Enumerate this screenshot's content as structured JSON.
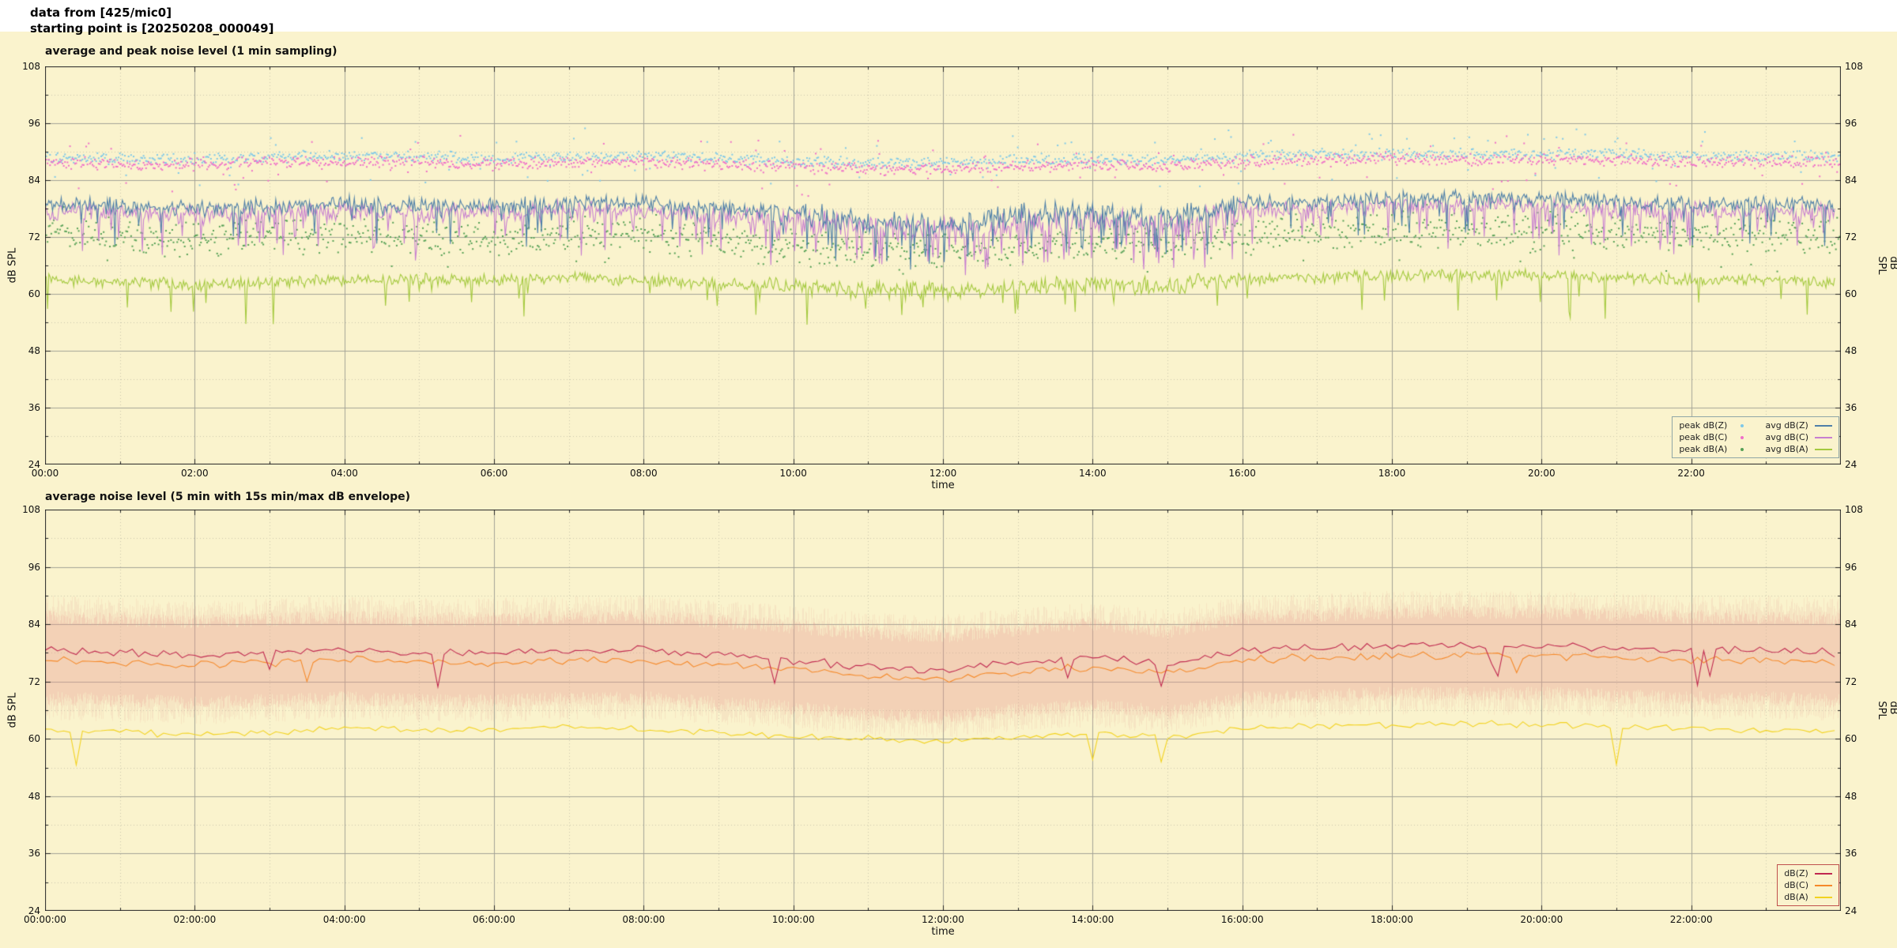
{
  "header": {
    "line1": "data from [425/mic0]",
    "line2": "starting point is [20250208_000049]"
  },
  "colors": {
    "background": "#faf3cd",
    "grid_major": "#a3a396",
    "grid_minor": "#c9c7ae",
    "axis": "#222222"
  },
  "chart_data": [
    {
      "type": "line",
      "title": "average and peak noise level (1 min sampling)",
      "xlabel": "time",
      "ylabel": "dB SPL",
      "ylim": [
        24,
        108
      ],
      "yticks": [
        24,
        36,
        48,
        60,
        72,
        84,
        96,
        108
      ],
      "xtick_labels": [
        "00:00",
        "02:00",
        "04:00",
        "06:00",
        "08:00",
        "10:00",
        "12:00",
        "14:00",
        "16:00",
        "18:00",
        "20:00",
        "22:00"
      ],
      "x_range_hours": [
        0,
        24
      ],
      "grid": true,
      "legend_position": "bottom-right",
      "legend_border": "#8fa6a6",
      "sample_minutes": 1,
      "legend_layout": [
        [
          "peak dB(Z)",
          "avg dB(Z)"
        ],
        [
          "peak dB(C)",
          "avg dB(C)"
        ],
        [
          "peak dB(A)",
          "avg dB(A)"
        ]
      ],
      "series": [
        {
          "name": "peak dB(Z)",
          "style": "scatter",
          "color": "#7ec8e8",
          "noise": 1.4,
          "hourly": [
            89,
            88.5,
            88.5,
            89,
            89,
            89,
            88.5,
            89,
            89,
            88.5,
            88,
            87.5,
            87.5,
            88,
            88.5,
            88,
            89,
            89.5,
            89.5,
            89.5,
            89.5,
            89.5,
            89,
            89,
            89
          ]
        },
        {
          "name": "peak dB(C)",
          "style": "scatter",
          "color": "#ef6fc8",
          "noise": 1.5,
          "hourly": [
            87.8,
            87.3,
            87.3,
            87.8,
            87.8,
            87.8,
            87.3,
            87.8,
            87.8,
            87.3,
            86.8,
            86.3,
            86.3,
            86.8,
            87.3,
            86.8,
            87.8,
            88.3,
            88.3,
            88.3,
            88.3,
            88.3,
            87.8,
            87.8,
            87.8
          ]
        },
        {
          "name": "peak dB(A)",
          "style": "scatter",
          "color": "#55a055",
          "noise": 4.2,
          "hourly": [
            73,
            72,
            71.5,
            72,
            72.5,
            72,
            72,
            72.5,
            72,
            71,
            70,
            69.5,
            69,
            70,
            71,
            70.5,
            72,
            73,
            73.5,
            73.5,
            73,
            73,
            72.5,
            72,
            72
          ]
        },
        {
          "name": "avg dB(C)",
          "style": "line",
          "color": "#c77fd0",
          "noise": 2.3,
          "dip": 0.09,
          "hourly": [
            77.5,
            77,
            76.5,
            77,
            77.5,
            77,
            77,
            77.5,
            77.5,
            76.5,
            75.5,
            74,
            73,
            75,
            76,
            74,
            77.5,
            78,
            78.5,
            78.5,
            78.5,
            78,
            77.5,
            77.5,
            77
          ]
        },
        {
          "name": "avg dB(Z)",
          "style": "line",
          "color": "#4e7fa8",
          "noise": 2.0,
          "dip": 0.06,
          "hourly": [
            79,
            78.5,
            78,
            78.5,
            79,
            78.5,
            78.5,
            79,
            79,
            78,
            77,
            75.5,
            74.5,
            76.5,
            77.5,
            75.5,
            79,
            79.5,
            80,
            80,
            80,
            79.5,
            79,
            79,
            78.5
          ]
        },
        {
          "name": "avg dB(A)",
          "style": "line",
          "color": "#a4c93f",
          "noise": 1.5,
          "dip": 0.03,
          "hourly": [
            63,
            62.5,
            62,
            62.5,
            63,
            63,
            63,
            63.5,
            63,
            62,
            61.5,
            61,
            60.5,
            61.5,
            62,
            61.5,
            63,
            63.5,
            64,
            64,
            64,
            63.5,
            63,
            63,
            62.5
          ]
        }
      ]
    },
    {
      "type": "line",
      "title": "average noise level (5 min with 15s min/max dB envelope)",
      "xlabel": "time",
      "ylabel": "dB SPL",
      "ylim": [
        24,
        108
      ],
      "yticks": [
        24,
        36,
        48,
        60,
        72,
        84,
        96,
        108
      ],
      "xtick_labels": [
        "00:00:00",
        "02:00:00",
        "04:00:00",
        "06:00:00",
        "08:00:00",
        "10:00:00",
        "12:00:00",
        "14:00:00",
        "16:00:00",
        "18:00:00",
        "20:00:00",
        "22:00:00"
      ],
      "x_range_hours": [
        0,
        24
      ],
      "grid": true,
      "legend_position": "bottom-right",
      "legend_border": "#c0504d",
      "sample_minutes": 5,
      "legend_layout": [
        [
          "dB(Z)"
        ],
        [
          "dB(C)"
        ],
        [
          "dB(A)"
        ]
      ],
      "envelope": {
        "name": "15s min/max envelope",
        "color": "#e89a90",
        "top_hourly": [
          85.5,
          85,
          84.5,
          85,
          85.5,
          85,
          85,
          85.5,
          85.5,
          84.5,
          83.5,
          82,
          81.5,
          83,
          84,
          82.5,
          85.5,
          86,
          86.5,
          86.5,
          86.5,
          86,
          85.5,
          85.5,
          85
        ],
        "bottom_hourly": [
          68.5,
          68,
          67.5,
          68,
          68.5,
          68,
          68,
          68.5,
          68.5,
          67.5,
          66.5,
          65,
          64.5,
          66,
          67,
          65.5,
          68.5,
          69,
          69.5,
          69.5,
          69.5,
          69,
          68.5,
          68.5,
          68
        ],
        "noise": 3.2
      },
      "series": [
        {
          "name": "dB(C)",
          "style": "line",
          "color": "#f5892a",
          "noise": 1.0,
          "dip": 0.02,
          "hourly": [
            76.5,
            76,
            75.5,
            76,
            76.5,
            76,
            76,
            76.5,
            76.5,
            75.5,
            74.5,
            73,
            72.5,
            74,
            75,
            73.5,
            76.5,
            77,
            77.5,
            77.5,
            77.5,
            77,
            76.5,
            76.5,
            76
          ]
        },
        {
          "name": "dB(Z)",
          "style": "line",
          "color": "#c02850",
          "noise": 1.0,
          "dip": 0.02,
          "hourly": [
            78.5,
            78,
            77.5,
            78,
            78.5,
            78,
            78,
            78.5,
            78.5,
            77.5,
            76.5,
            75,
            74.5,
            76,
            77,
            75.5,
            78.5,
            79,
            79.5,
            79.5,
            79.5,
            79,
            78.5,
            78.5,
            78
          ]
        },
        {
          "name": "dB(A)",
          "style": "line",
          "color": "#f2d21f",
          "noise": 0.9,
          "dip": 0.02,
          "hourly": [
            62,
            61.5,
            61,
            61.5,
            62,
            62,
            62,
            62.5,
            62,
            61,
            60.5,
            60,
            59.5,
            60.5,
            61,
            60.5,
            62,
            62.5,
            63,
            63,
            63,
            62.5,
            62,
            62,
            61.5
          ]
        }
      ]
    }
  ]
}
